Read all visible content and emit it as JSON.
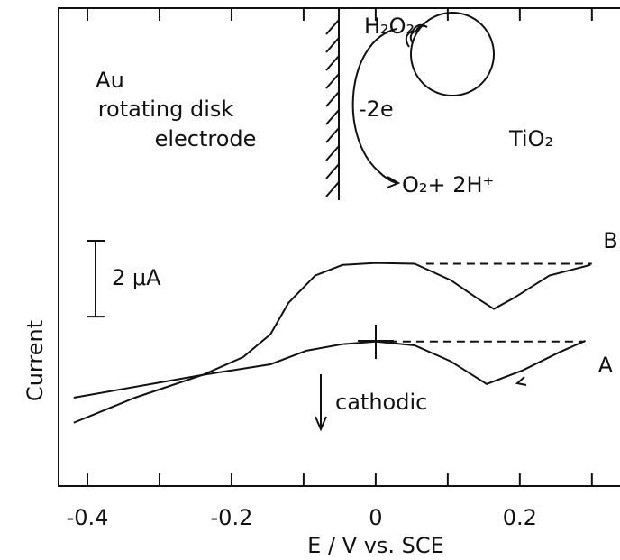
{
  "chart_data": {
    "type": "line",
    "x_label": "E / V vs. SCE",
    "y_label": "Current",
    "xlim": [
      -0.44,
      0.339
    ],
    "ylim": [
      0,
      12.6
    ],
    "xticks": [
      -0.4,
      -0.2,
      0,
      0.2
    ],
    "xminorticks": [
      -0.3,
      -0.1,
      0.1,
      0.3
    ],
    "series": [
      {
        "name": "A",
        "color": "#111111",
        "x": [
          -0.419,
          -0.24,
          -0.146,
          -0.096,
          -0.046,
          0,
          0.054,
          0.104,
          0.154,
          0.204,
          0.254,
          0.291
        ],
        "values": [
          2.33,
          2.93,
          3.21,
          3.57,
          3.74,
          3.81,
          3.71,
          3.29,
          2.69,
          3.05,
          3.52,
          3.83
        ]
      },
      {
        "name": "B",
        "color": "#111111",
        "x": [
          -0.419,
          -0.334,
          -0.24,
          -0.184,
          -0.146,
          -0.121,
          -0.084,
          -0.046,
          0,
          0.054,
          0.104,
          0.141,
          0.164,
          0.191,
          0.241,
          0.298
        ],
        "values": [
          1.67,
          2.33,
          2.93,
          3.4,
          4.0,
          4.83,
          5.55,
          5.83,
          5.88,
          5.86,
          5.43,
          4.95,
          4.67,
          4.95,
          5.55,
          5.83
        ]
      }
    ],
    "baselines": [
      {
        "x": [
          0,
          0.29
        ],
        "values": [
          3.81,
          3.81
        ]
      },
      {
        "x": [
          0.07,
          0.3
        ],
        "values": [
          5.86,
          5.86
        ]
      }
    ],
    "scale_bar": {
      "label": "2 μA",
      "value": 2
    },
    "annotations": {
      "direction": "cathodic",
      "electrode_1": "Au",
      "electrode_2": "rotating disk",
      "electrode_3": "electrode",
      "reactant": "H₂O₂",
      "electrons": "-2e",
      "particle": "TiO₂",
      "product": "O₂+ 2H⁺"
    }
  }
}
